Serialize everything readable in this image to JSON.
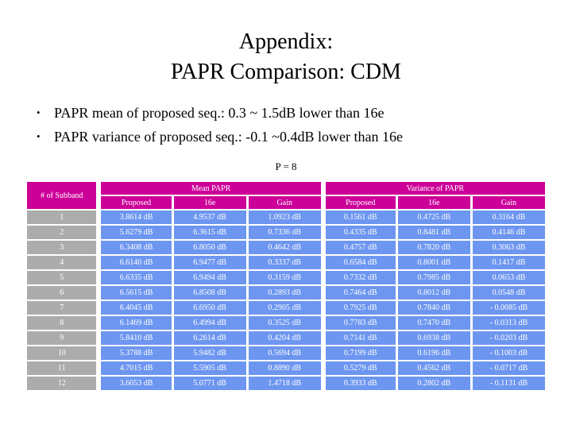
{
  "slide": {
    "title_lines": [
      "Appendix:",
      "PAPR Comparison: CDM"
    ],
    "bullet_marker": "•",
    "bullets": [
      "PAPR mean of proposed seq.: 0.3 ~ 1.5dB lower than 16e",
      "PAPR variance of proposed seq.: -0.1 ~0.4dB lower than 16e"
    ],
    "table_caption": "P = 8"
  },
  "table": {
    "col1_header": "# of  Subband",
    "group_headers": [
      "Mean PAPR",
      "Variance of PAPR"
    ],
    "sub_headers": [
      "Proposed",
      "16e",
      "Gain",
      "Proposed",
      "16e",
      "Gain"
    ],
    "rows": [
      {
        "subband": "1",
        "cells": [
          "3.8614 dB",
          "4.9537 dB",
          "1.0923 dB",
          "0.1561 dB",
          "0.4725 dB",
          "0.3164 dB"
        ]
      },
      {
        "subband": "2",
        "cells": [
          "5.6279 dB",
          "6.3615 dB",
          "0.7336 dB",
          "0.4335 dB",
          "0.8481 dB",
          "0.4146 dB"
        ]
      },
      {
        "subband": "3",
        "cells": [
          "6.3408 dB",
          "6.8050 dB",
          "0.4642 dB",
          "0.4757 dB",
          "0.7820 dB",
          "0.3063 dB"
        ]
      },
      {
        "subband": "4",
        "cells": [
          "6.6140 dB",
          "6.9477 dB",
          "0.3337 dB",
          "0.6584 dB",
          "0.8001 dB",
          "0.1417 dB"
        ]
      },
      {
        "subband": "5",
        "cells": [
          "6.6335 dB",
          "6.9494 dB",
          "0.3159 dB",
          "0.7332 dB",
          "0.7985 dB",
          "0.0653 dB"
        ]
      },
      {
        "subband": "6",
        "cells": [
          "6.5615 dB",
          "6.8508 dB",
          "0.2893 dB",
          "0.7464 dB",
          "0.8012 dB",
          "0.0548 dB"
        ]
      },
      {
        "subband": "7",
        "cells": [
          "6.4045 dB",
          "6.6950 dB",
          "0.2905 dB",
          "0.7925 dB",
          "0.7840 dB",
          "- 0.0085 dB"
        ]
      },
      {
        "subband": "8",
        "cells": [
          "6.1469 dB",
          "6.4994 dB",
          "0.3525 dB",
          "0.7783 dB",
          "0.7470 dB",
          "- 0.0313 dB"
        ]
      },
      {
        "subband": "9",
        "cells": [
          "5.8410 dB",
          "6.2614 dB",
          "0.4204 dB",
          "0.7141 dB",
          "0.6938 dB",
          "- 0.0203 dB"
        ]
      },
      {
        "subband": "10",
        "cells": [
          "5.3788 dB",
          "5.9482 dB",
          "0.5694 dB",
          "0.7199 dB",
          "0.6196 dB",
          "- 0.1003 dB"
        ]
      },
      {
        "subband": "11",
        "cells": [
          "4.7015 dB",
          "5.5905 dB",
          "0.8890 dB",
          "0.5279 dB",
          "0.4562 dB",
          "- 0.0717 dB"
        ]
      },
      {
        "subband": "12",
        "cells": [
          "3.6053 dB",
          "5.0771 dB",
          "1.4718 dB",
          "0.3933 dB",
          "0.2802 dB",
          "- 0.1131 dB"
        ]
      }
    ]
  },
  "colors": {
    "header_bg": "#cc0099",
    "value_cell_bg": "#6d96f0",
    "subband_cell_bg": "#acacac",
    "cell_text": "#ffffff",
    "body_text": "#000000",
    "background": "#ffffff"
  }
}
